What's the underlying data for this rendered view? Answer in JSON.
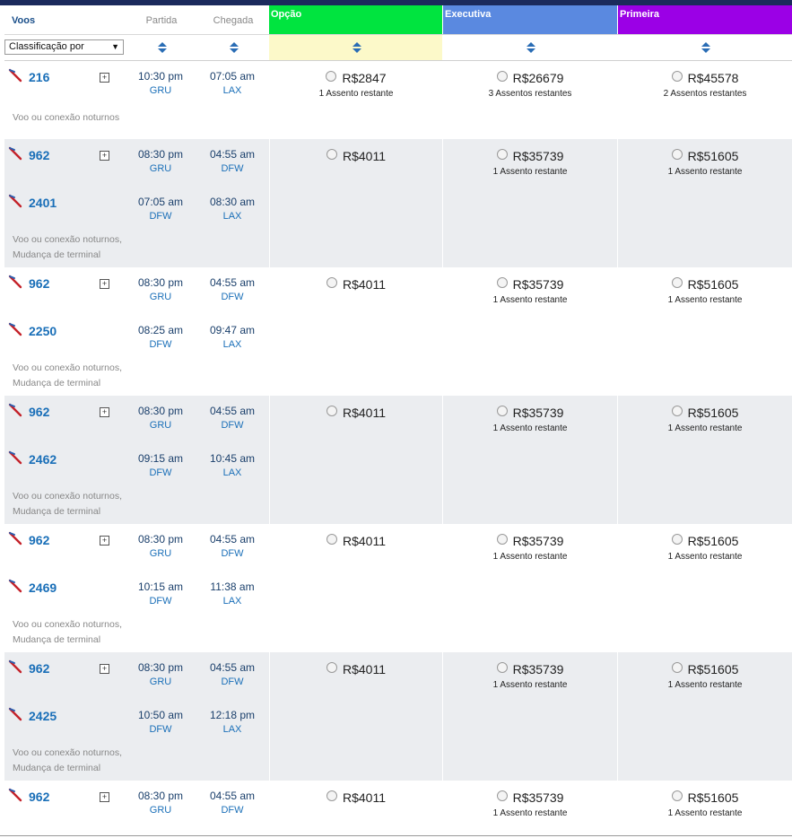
{
  "header": {
    "voos": "Voos",
    "partida": "Partida",
    "chegada": "Chegada",
    "fares": [
      "Opção",
      "Executiva",
      "Primeira"
    ],
    "sort_select": "Classificação por",
    "colors": {
      "topbar": "#1b2a5c",
      "opcao": "#00e43f",
      "executiva": "#5a89e0",
      "primeira": "#9b00e6"
    }
  },
  "itineraries": [
    {
      "segments": [
        {
          "flight": "216",
          "dep_time": "10:30 pm",
          "dep": "GRU",
          "arr_time": "07:05 am",
          "arr": "LAX"
        }
      ],
      "note": [
        "Voo ou conexão noturnos"
      ],
      "fares": [
        {
          "price": "R$2847",
          "seats": "1 Assento restante"
        },
        {
          "price": "R$26679",
          "seats": "3 Assentos restantes"
        },
        {
          "price": "R$45578",
          "seats": "2 Assentos restantes"
        }
      ]
    },
    {
      "segments": [
        {
          "flight": "962",
          "dep_time": "08:30 pm",
          "dep": "GRU",
          "arr_time": "04:55 am",
          "arr": "DFW"
        },
        {
          "flight": "2401",
          "dep_time": "07:05 am",
          "dep": "DFW",
          "arr_time": "08:30 am",
          "arr": "LAX"
        }
      ],
      "note": [
        "Voo ou conexão noturnos,",
        "Mudança de terminal"
      ],
      "fares": [
        {
          "price": "R$4011",
          "seats": ""
        },
        {
          "price": "R$35739",
          "seats": "1 Assento restante"
        },
        {
          "price": "R$51605",
          "seats": "1 Assento restante"
        }
      ]
    },
    {
      "segments": [
        {
          "flight": "962",
          "dep_time": "08:30 pm",
          "dep": "GRU",
          "arr_time": "04:55 am",
          "arr": "DFW"
        },
        {
          "flight": "2250",
          "dep_time": "08:25 am",
          "dep": "DFW",
          "arr_time": "09:47 am",
          "arr": "LAX"
        }
      ],
      "note": [
        "Voo ou conexão noturnos,",
        "Mudança de terminal"
      ],
      "fares": [
        {
          "price": "R$4011",
          "seats": ""
        },
        {
          "price": "R$35739",
          "seats": "1 Assento restante"
        },
        {
          "price": "R$51605",
          "seats": "1 Assento restante"
        }
      ]
    },
    {
      "segments": [
        {
          "flight": "962",
          "dep_time": "08:30 pm",
          "dep": "GRU",
          "arr_time": "04:55 am",
          "arr": "DFW"
        },
        {
          "flight": "2462",
          "dep_time": "09:15 am",
          "dep": "DFW",
          "arr_time": "10:45 am",
          "arr": "LAX"
        }
      ],
      "note": [
        "Voo ou conexão noturnos,",
        "Mudança de terminal"
      ],
      "fares": [
        {
          "price": "R$4011",
          "seats": ""
        },
        {
          "price": "R$35739",
          "seats": "1 Assento restante"
        },
        {
          "price": "R$51605",
          "seats": "1 Assento restante"
        }
      ]
    },
    {
      "segments": [
        {
          "flight": "962",
          "dep_time": "08:30 pm",
          "dep": "GRU",
          "arr_time": "04:55 am",
          "arr": "DFW"
        },
        {
          "flight": "2469",
          "dep_time": "10:15 am",
          "dep": "DFW",
          "arr_time": "11:38 am",
          "arr": "LAX"
        }
      ],
      "note": [
        "Voo ou conexão noturnos,",
        "Mudança de terminal"
      ],
      "fares": [
        {
          "price": "R$4011",
          "seats": ""
        },
        {
          "price": "R$35739",
          "seats": "1 Assento restante"
        },
        {
          "price": "R$51605",
          "seats": "1 Assento restante"
        }
      ]
    },
    {
      "segments": [
        {
          "flight": "962",
          "dep_time": "08:30 pm",
          "dep": "GRU",
          "arr_time": "04:55 am",
          "arr": "DFW"
        },
        {
          "flight": "2425",
          "dep_time": "10:50 am",
          "dep": "DFW",
          "arr_time": "12:18 pm",
          "arr": "LAX"
        }
      ],
      "note": [
        "Voo ou conexão noturnos,",
        "Mudança de terminal"
      ],
      "fares": [
        {
          "price": "R$4011",
          "seats": ""
        },
        {
          "price": "R$35739",
          "seats": "1 Assento restante"
        },
        {
          "price": "R$51605",
          "seats": "1 Assento restante"
        }
      ]
    },
    {
      "segments": [
        {
          "flight": "962",
          "dep_time": "08:30 pm",
          "dep": "GRU",
          "arr_time": "04:55 am",
          "arr": "DFW"
        }
      ],
      "note": [],
      "fares": [
        {
          "price": "R$4011",
          "seats": ""
        },
        {
          "price": "R$35739",
          "seats": "1 Assento restante"
        },
        {
          "price": "R$51605",
          "seats": "1 Assento restante"
        }
      ]
    }
  ]
}
